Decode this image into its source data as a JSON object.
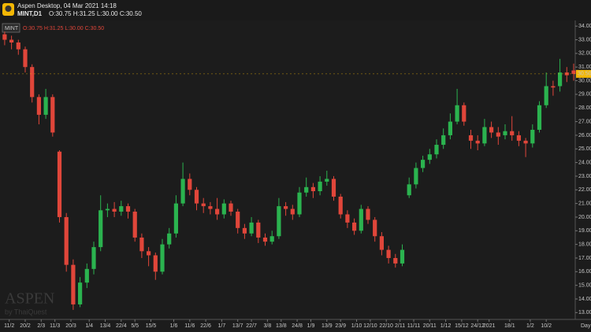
{
  "app_title": "Aspen Desktop, 04 Mar 2021 14:18",
  "symbol_line": "MINT,D1",
  "watermark": "ASPEN",
  "watermark_sub": "by ThaiQuest",
  "chart_data": {
    "type": "candlestick",
    "symbol": "MINT",
    "ohlc_text": "O:30.75 H:31.25 L:30.00 C:30.50",
    "timeframe": "Day",
    "last_price": {
      "value": 30.5,
      "label": "30.50"
    },
    "xlim": [
      0,
      250
    ],
    "ylim": [
      12.5,
      34.3
    ],
    "grid": false,
    "up_color": "#2bb34f",
    "down_color": "#e0463a",
    "yticks": [
      {
        "value": 13,
        "label": "13.00"
      },
      {
        "value": 14,
        "label": "14.00"
      },
      {
        "value": 15,
        "label": "15.00"
      },
      {
        "value": 16,
        "label": "16.00"
      },
      {
        "value": 17,
        "label": "17.00"
      },
      {
        "value": 18,
        "label": "18.00"
      },
      {
        "value": 19,
        "label": "19.00"
      },
      {
        "value": 20,
        "label": "20.00"
      },
      {
        "value": 21,
        "label": "21.00"
      },
      {
        "value": 22,
        "label": "22.00"
      },
      {
        "value": 23,
        "label": "23.00"
      },
      {
        "value": 24,
        "label": "24.00"
      },
      {
        "value": 25,
        "label": "25.00"
      },
      {
        "value": 26,
        "label": "26.00"
      },
      {
        "value": 27,
        "label": "27.00"
      },
      {
        "value": 28,
        "label": "28.00"
      },
      {
        "value": 29,
        "label": "29.00"
      },
      {
        "value": 30,
        "label": "30.00"
      },
      {
        "value": 31,
        "label": "31.00"
      },
      {
        "value": 32,
        "label": "32.00"
      },
      {
        "value": 33,
        "label": "33.00"
      },
      {
        "value": 34,
        "label": "34.00"
      }
    ],
    "xticks": [
      {
        "value": 3,
        "label": "11/2"
      },
      {
        "value": 10,
        "label": "20/2"
      },
      {
        "value": 17,
        "label": "2/3"
      },
      {
        "value": 23,
        "label": "11/3"
      },
      {
        "value": 30,
        "label": "20/3"
      },
      {
        "value": 38,
        "label": "1/4"
      },
      {
        "value": 45,
        "label": "13/4"
      },
      {
        "value": 52,
        "label": "22/4"
      },
      {
        "value": 58,
        "label": "5/5"
      },
      {
        "value": 65,
        "label": "15/5"
      },
      {
        "value": 75,
        "label": "1/6"
      },
      {
        "value": 82,
        "label": "11/6"
      },
      {
        "value": 89,
        "label": "22/6"
      },
      {
        "value": 96,
        "label": "1/7"
      },
      {
        "value": 103,
        "label": "13/7"
      },
      {
        "value": 109,
        "label": "22/7"
      },
      {
        "value": 116,
        "label": "3/8"
      },
      {
        "value": 122,
        "label": "13/8"
      },
      {
        "value": 129,
        "label": "24/8"
      },
      {
        "value": 135,
        "label": "1/9"
      },
      {
        "value": 142,
        "label": "13/9"
      },
      {
        "value": 148,
        "label": "23/9"
      },
      {
        "value": 155,
        "label": "1/10"
      },
      {
        "value": 161,
        "label": "12/10"
      },
      {
        "value": 168,
        "label": "22/10"
      },
      {
        "value": 174,
        "label": "2/11"
      },
      {
        "value": 180,
        "label": "11/11"
      },
      {
        "value": 187,
        "label": "20/11"
      },
      {
        "value": 194,
        "label": "1/12"
      },
      {
        "value": 201,
        "label": "15/12"
      },
      {
        "value": 208,
        "label": "24/12"
      },
      {
        "value": 213,
        "label": "2021"
      },
      {
        "value": 222,
        "label": "18/1"
      },
      {
        "value": 231,
        "label": "1/2"
      },
      {
        "value": 238,
        "label": "10/2"
      }
    ],
    "series": [
      {
        "x": [
          1,
          4,
          7,
          10,
          13,
          16,
          19,
          22,
          25,
          28,
          31,
          34,
          37,
          40,
          43,
          46,
          49,
          52,
          55,
          58,
          61,
          64,
          67,
          70,
          73,
          76,
          79,
          82,
          85,
          88,
          91,
          94,
          97,
          100,
          103,
          106,
          109,
          112,
          115,
          118,
          121,
          124,
          127,
          130,
          133,
          136,
          139,
          142,
          145,
          148,
          151,
          154,
          157,
          160,
          163,
          166,
          169,
          172,
          175,
          178,
          181,
          184,
          187,
          190,
          193,
          196,
          199,
          202,
          205,
          208,
          211,
          214,
          217,
          220,
          223,
          226,
          229,
          232,
          235,
          238,
          241,
          244,
          247,
          250
        ],
        "open": [
          33.4,
          33.0,
          32.8,
          32.3,
          31.0,
          28.8,
          27.5,
          28.8,
          24.8,
          20.0,
          16.5,
          13.6,
          15.2,
          16.2,
          17.8,
          20.5,
          20.6,
          20.4,
          20.8,
          20.4,
          18.5,
          17.5,
          17.2,
          16.0,
          18.0,
          18.8,
          21.0,
          22.8,
          22.0,
          21.0,
          20.8,
          20.6,
          20.2,
          21.0,
          20.4,
          19.2,
          18.8,
          19.6,
          18.5,
          18.2,
          18.6,
          20.8,
          20.6,
          20.2,
          21.8,
          22.2,
          21.9,
          22.6,
          22.8,
          21.5,
          20.2,
          19.6,
          19.0,
          20.6,
          19.8,
          18.6,
          17.6,
          17.0,
          16.6,
          21.6,
          22.4,
          23.6,
          24.2,
          24.6,
          25.3,
          26.0,
          27.0,
          28.2,
          26.0,
          25.6,
          25.4,
          26.6,
          26.2,
          26.0,
          26.3,
          26.0,
          25.6,
          25.4,
          26.4,
          28.2,
          29.6,
          29.6,
          30.6,
          30.75
        ],
        "high": [
          33.6,
          33.3,
          33.0,
          32.5,
          31.2,
          29.0,
          29.4,
          29.0,
          24.9,
          20.3,
          16.9,
          15.6,
          16.6,
          18.2,
          21.6,
          21.0,
          21.1,
          21.2,
          21.0,
          20.6,
          18.8,
          17.8,
          17.4,
          18.4,
          19.2,
          21.6,
          24.0,
          23.2,
          22.2,
          21.4,
          21.1,
          21.4,
          21.3,
          21.2,
          20.6,
          19.5,
          20.0,
          19.8,
          18.8,
          19.0,
          21.4,
          21.1,
          20.9,
          22.2,
          22.9,
          22.5,
          23.0,
          23.4,
          23.0,
          21.7,
          20.5,
          19.9,
          20.9,
          20.8,
          20.0,
          18.9,
          17.9,
          17.3,
          18.0,
          22.9,
          24.0,
          24.5,
          25.0,
          25.7,
          26.5,
          27.6,
          29.4,
          28.4,
          26.4,
          26.0,
          27.2,
          27.0,
          26.6,
          26.8,
          27.4,
          26.3,
          25.8,
          26.8,
          28.5,
          30.6,
          30.0,
          31.6,
          31.0,
          31.25
        ],
        "low": [
          32.6,
          32.3,
          31.9,
          30.6,
          28.4,
          26.8,
          27.2,
          25.9,
          19.6,
          16.0,
          13.2,
          13.4,
          14.8,
          15.8,
          17.5,
          20.0,
          20.0,
          20.1,
          19.9,
          18.2,
          17.0,
          16.4,
          15.4,
          15.8,
          17.7,
          18.5,
          20.8,
          21.6,
          20.5,
          20.3,
          20.2,
          19.8,
          19.9,
          20.1,
          18.8,
          18.4,
          18.6,
          18.1,
          17.9,
          18.0,
          18.4,
          20.1,
          19.8,
          20.0,
          21.5,
          21.4,
          21.6,
          22.3,
          21.2,
          19.9,
          19.2,
          18.7,
          18.8,
          19.5,
          18.2,
          17.2,
          16.6,
          16.3,
          16.4,
          21.4,
          22.1,
          23.3,
          23.9,
          24.3,
          25.0,
          25.7,
          26.8,
          26.7,
          25.0,
          24.9,
          25.2,
          25.8,
          25.3,
          25.7,
          25.6,
          25.2,
          24.4,
          25.1,
          26.2,
          28.0,
          28.9,
          29.2,
          29.9,
          30.0
        ],
        "close": [
          33.0,
          32.8,
          32.3,
          31.0,
          28.8,
          27.5,
          28.8,
          26.2,
          20.0,
          16.5,
          13.6,
          15.2,
          16.2,
          17.8,
          20.5,
          20.6,
          20.4,
          20.8,
          20.4,
          18.5,
          17.5,
          17.2,
          16.0,
          18.0,
          18.8,
          21.0,
          22.8,
          22.0,
          21.0,
          20.8,
          20.6,
          20.2,
          21.0,
          20.4,
          19.2,
          18.8,
          19.6,
          18.5,
          18.2,
          18.6,
          20.8,
          20.6,
          20.2,
          21.8,
          22.2,
          21.9,
          22.6,
          22.8,
          21.5,
          20.2,
          19.6,
          19.0,
          20.6,
          19.8,
          18.6,
          17.6,
          17.0,
          16.6,
          17.6,
          22.4,
          23.6,
          24.2,
          24.6,
          25.3,
          26.0,
          27.0,
          28.2,
          27.0,
          25.6,
          25.4,
          26.6,
          26.2,
          25.9,
          26.3,
          26.0,
          25.6,
          25.4,
          26.4,
          28.2,
          29.6,
          29.5,
          30.6,
          30.4,
          30.5
        ]
      }
    ]
  }
}
